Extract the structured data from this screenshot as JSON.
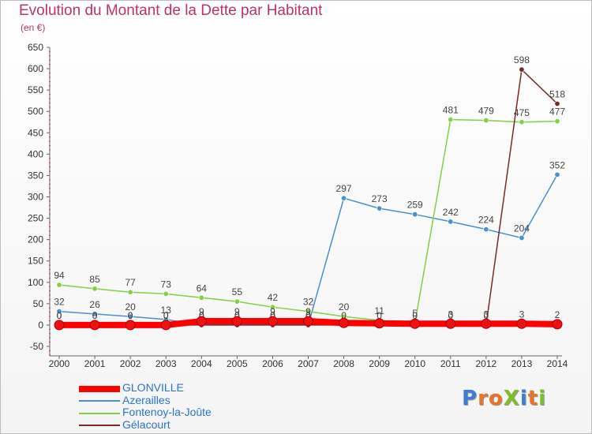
{
  "title": "Evolution du Montant de la Dette par Habitant",
  "unit": "(en €)",
  "brand": {
    "text": "ProXiti",
    "letters": [
      {
        "ch": "P",
        "color": "#3a7fd5"
      },
      {
        "ch": "r",
        "color": "#e8742a"
      },
      {
        "ch": "o",
        "color": "#e8742a"
      },
      {
        "ch": "X",
        "color": "#7bbf2a"
      },
      {
        "ch": "i",
        "color": "#3a7fd5"
      },
      {
        "ch": "t",
        "color": "#e8742a"
      },
      {
        "ch": "i",
        "color": "#7bbf2a"
      }
    ]
  },
  "chart_data": {
    "type": "line",
    "x": [
      2000,
      2001,
      2002,
      2003,
      2004,
      2005,
      2006,
      2007,
      2008,
      2009,
      2010,
      2011,
      2012,
      2013,
      2014
    ],
    "ylim": [
      -50,
      650
    ],
    "yticks": [
      -50,
      0,
      50,
      100,
      150,
      200,
      250,
      300,
      350,
      400,
      450,
      500,
      550,
      600,
      650
    ],
    "grid": false,
    "legend_position": "bottom-left",
    "series": [
      {
        "name": "GLONVILLE",
        "color": "#ff0000",
        "values": [
          0,
          0,
          0,
          0,
          9,
          9,
          9,
          9,
          5,
          4,
          3,
          3,
          3,
          3,
          2
        ],
        "labels": [
          "0",
          "0",
          "0",
          "0",
          "9",
          "9",
          "9",
          "9",
          "",
          "",
          "",
          "3",
          "3",
          "3",
          "2"
        ]
      },
      {
        "name": "Azerailles",
        "color": "#4a8fd0",
        "values": [
          32,
          26,
          20,
          13,
          0,
          0,
          0,
          0,
          297,
          273,
          259,
          242,
          224,
          204,
          352
        ],
        "labels": [
          "32",
          "26",
          "20",
          "13",
          "0",
          "0",
          "0",
          "0",
          "297",
          "273",
          "259",
          "242",
          "224",
          "204",
          "352"
        ]
      },
      {
        "name": "Fontenoy-la-Joûte",
        "color": "#82d046",
        "values": [
          94,
          85,
          77,
          73,
          64,
          55,
          42,
          32,
          20,
          11,
          5,
          481,
          479,
          475,
          477
        ],
        "labels": [
          "94",
          "85",
          "77",
          "73",
          "64",
          "55",
          "42",
          "32",
          "20",
          "11",
          "5",
          "481",
          "479",
          "475",
          "477"
        ]
      },
      {
        "name": "Gélacourt",
        "color": "#7a2a2a",
        "values": [
          0,
          0,
          0,
          0,
          0,
          0,
          0,
          0,
          0,
          0,
          0,
          0,
          0,
          598,
          518
        ],
        "labels": [
          "0",
          "0",
          "0",
          "0",
          "0",
          "0",
          "0",
          "0",
          "0",
          "0",
          "0",
          "0",
          "0",
          "598",
          "518"
        ]
      }
    ]
  }
}
